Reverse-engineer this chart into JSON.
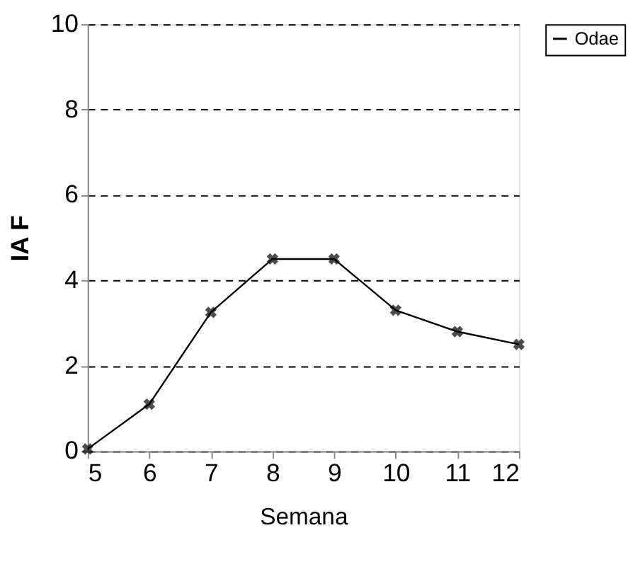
{
  "chart_data": {
    "type": "line",
    "xlabel": "Semana",
    "ylabel": "IA F",
    "x": [
      5,
      6,
      7,
      8,
      9,
      10,
      11,
      12
    ],
    "series": [
      {
        "name": "Odae",
        "color": "#000000",
        "values": [
          0.05,
          1.1,
          3.25,
          4.5,
          4.5,
          3.3,
          2.8,
          2.5
        ]
      }
    ],
    "xlim": [
      5,
      12
    ],
    "xticks": [
      5,
      6,
      7,
      8,
      9,
      10,
      11,
      12
    ],
    "ylim": [
      0,
      10
    ],
    "yticks": [
      0,
      2,
      4,
      6,
      8,
      10
    ],
    "grid": "y",
    "legend": "right",
    "marker": "cross",
    "line_style": "solid"
  }
}
